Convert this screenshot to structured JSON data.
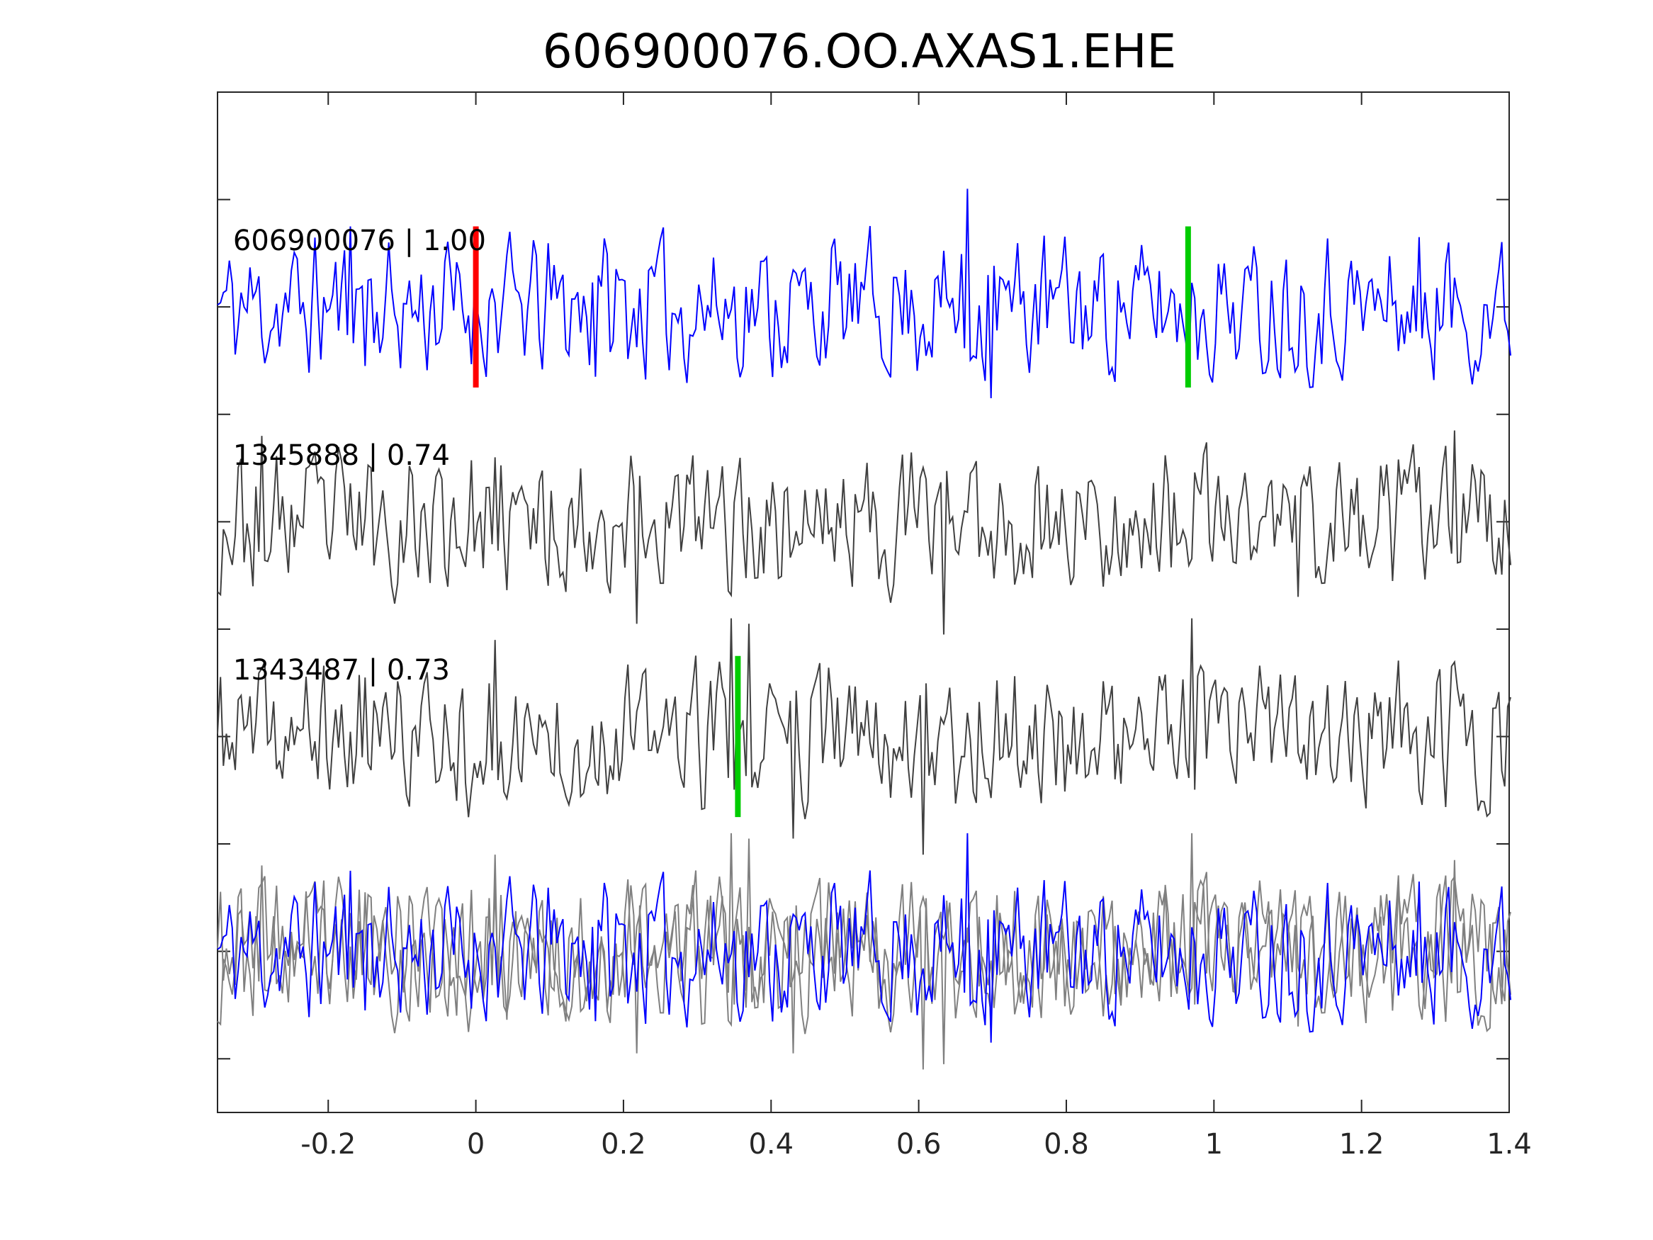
{
  "chart_data": {
    "type": "line",
    "title": "606900076.OO.AXAS1.EHE",
    "xlabel": "",
    "ylabel": "",
    "xlim": [
      -0.35,
      1.4
    ],
    "xticks": [
      -0.2,
      0,
      0.2,
      0.4,
      0.6,
      0.8,
      1,
      1.2,
      1.4
    ],
    "xtick_labels": [
      "-0.2",
      "0",
      "0.2",
      "0.4",
      "0.6",
      "0.8",
      "1",
      "1.2",
      "1.4"
    ],
    "ylim": [
      -0.5,
      9
    ],
    "yticks": [
      0,
      1,
      2,
      3,
      4,
      5,
      6,
      7,
      8
    ],
    "grid": false,
    "sample_interval": 0.004,
    "traces": [
      {
        "name": "606900076 | 1.00",
        "label": "606900076 | 1.00",
        "offset": 7,
        "color": "#0000ff",
        "seed": 11,
        "spikes": [
          [
            0.667,
            1.1
          ],
          [
            0.697,
            -0.85
          ],
          [
            -0.17,
            0.75
          ],
          [
            -0.15,
            -0.55
          ],
          [
            1.28,
            0.65
          ],
          [
            0.16,
            -0.65
          ]
        ],
        "picks": [
          {
            "t": 0.0,
            "color": "#ff0000"
          },
          {
            "t": 0.965,
            "color": "#00cc00"
          }
        ]
      },
      {
        "name": "1345888 | 0.74",
        "label": "1345888 | 0.74",
        "offset": 5,
        "color": "#404040",
        "seed": 23,
        "spikes": [
          [
            0.635,
            -1.05
          ],
          [
            1.325,
            0.85
          ],
          [
            0.22,
            -0.95
          ],
          [
            -0.29,
            0.8
          ],
          [
            1.115,
            -0.7
          ],
          [
            0.025,
            0.6
          ]
        ],
        "picks": []
      },
      {
        "name": "1343487 | 0.73",
        "label": "1343487 | 0.73",
        "offset": 3,
        "color": "#404040",
        "seed": 37,
        "spikes": [
          [
            0.348,
            1.1
          ],
          [
            0.368,
            1.05
          ],
          [
            0.43,
            -0.95
          ],
          [
            0.605,
            -1.1
          ],
          [
            0.97,
            1.1
          ],
          [
            0.025,
            0.9
          ],
          [
            -0.15,
            0.55
          ]
        ],
        "picks": [
          {
            "t": 0.355,
            "color": "#00cc00"
          }
        ]
      }
    ],
    "stack": {
      "offset": 1,
      "colors": [
        "#0000ff",
        "#808080",
        "#808080"
      ]
    }
  }
}
